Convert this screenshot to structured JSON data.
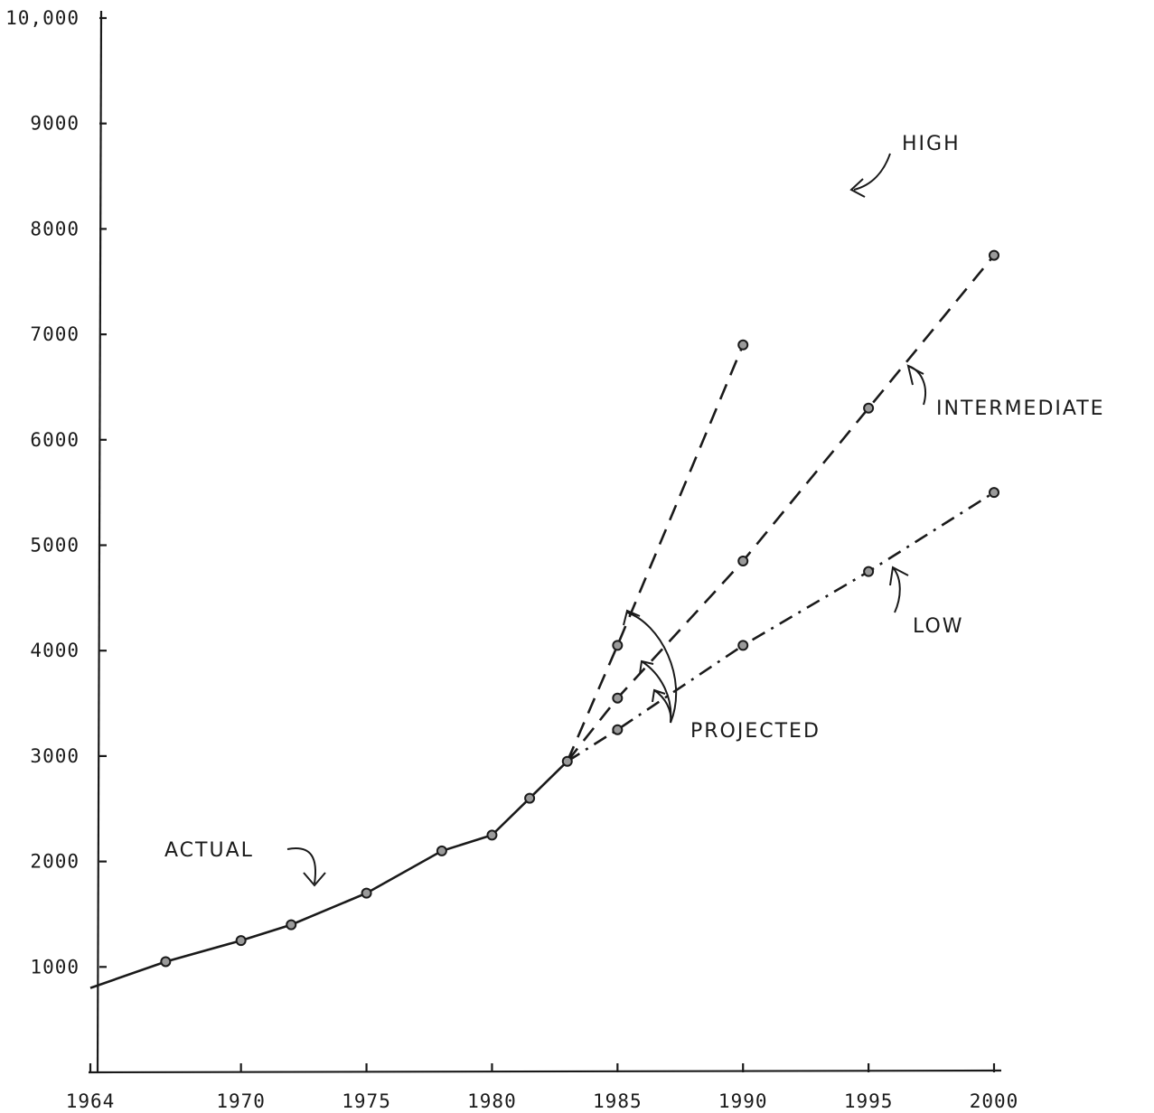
{
  "chart_data": {
    "type": "line",
    "title": "",
    "xlabel": "",
    "ylabel": "",
    "xlim": [
      1964,
      2000
    ],
    "ylim": [
      0,
      10000
    ],
    "x_ticks": [
      "1964",
      "1970",
      "1975",
      "1980",
      "1985",
      "1990",
      "1995",
      "2000"
    ],
    "x_tick_values": [
      1964,
      1970,
      1975,
      1980,
      1985,
      1990,
      1995,
      2000
    ],
    "y_ticks": [
      "10,000",
      "9000",
      "8000",
      "7000",
      "6000",
      "5000",
      "4000",
      "3000",
      "2000",
      "1000"
    ],
    "y_tick_values": [
      10000,
      9000,
      8000,
      7000,
      6000,
      5000,
      4000,
      3000,
      2000,
      1000
    ],
    "grid": false,
    "series": [
      {
        "name": "ACTUAL",
        "style": "solid",
        "x": [
          1964,
          1967,
          1970,
          1972,
          1975,
          1978,
          1980,
          1981.5,
          1983
        ],
        "y": [
          800,
          1050,
          1250,
          1400,
          1700,
          2100,
          2250,
          2600,
          2950
        ],
        "markers": [
          false,
          true,
          true,
          true,
          true,
          true,
          true,
          true,
          true
        ]
      },
      {
        "name": "HIGH",
        "style": "dashed",
        "x": [
          1983,
          1985,
          1990
        ],
        "y": [
          2950,
          4050,
          6900
        ]
      },
      {
        "name": "INTERMEDIATE",
        "style": "dashed",
        "x": [
          1983,
          1985,
          1990,
          1995,
          2000
        ],
        "y": [
          2950,
          3550,
          4850,
          6300,
          7750
        ]
      },
      {
        "name": "LOW",
        "style": "dash-dot",
        "x": [
          1983,
          1985,
          1990,
          1995,
          2000
        ],
        "y": [
          2950,
          3250,
          4050,
          4750,
          5500
        ]
      }
    ],
    "annotations": [
      {
        "text": "ACTUAL",
        "target": "ACTUAL"
      },
      {
        "text": "HIGH",
        "target": "HIGH"
      },
      {
        "text": "INTERMEDIATE",
        "target": "INTERMEDIATE"
      },
      {
        "text": "LOW",
        "target": "LOW"
      },
      {
        "text": "PROJECTED",
        "target": "projections"
      }
    ]
  },
  "colors": {
    "ink": "#1a1a1a",
    "marker_fill": "#9a9a9a",
    "background": "#ffffff"
  }
}
